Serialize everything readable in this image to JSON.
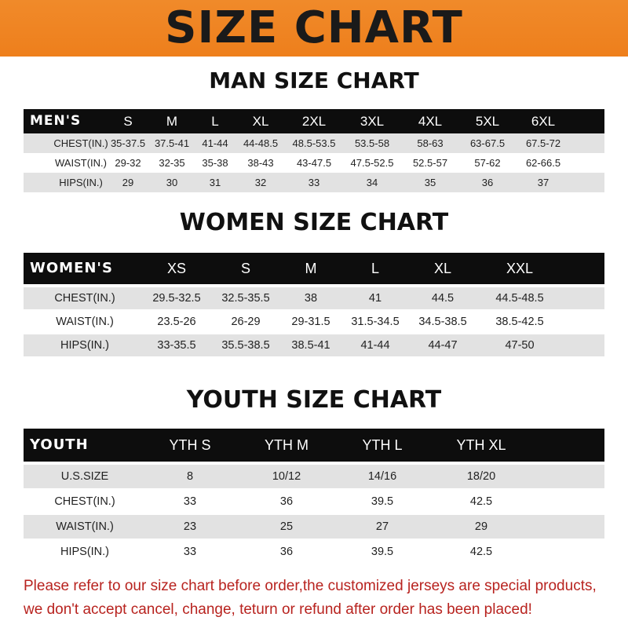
{
  "banner": {
    "title": "SIZE CHART",
    "color": "#ef851f"
  },
  "men": {
    "title": "MAN SIZE CHART",
    "header": [
      "MEN'S",
      "S",
      "M",
      "L",
      "XL",
      "2XL",
      "3XL",
      "4XL",
      "5XL",
      "6XL"
    ],
    "rows": [
      [
        "CHEST(IN.)",
        "35-37.5",
        "37.5-41",
        "41-44",
        "44-48.5",
        "48.5-53.5",
        "53.5-58",
        "58-63",
        "63-67.5",
        "67.5-72"
      ],
      [
        "WAIST(IN.)",
        "29-32",
        "32-35",
        "35-38",
        "38-43",
        "43-47.5",
        "47.5-52.5",
        "52.5-57",
        "57-62",
        "62-66.5"
      ],
      [
        "HIPS(IN.)",
        "29",
        "30",
        "31",
        "32",
        "33",
        "34",
        "35",
        "36",
        "37"
      ]
    ]
  },
  "women": {
    "title": "WOMEN SIZE CHART",
    "header": [
      "WOMEN'S",
      "XS",
      "S",
      "M",
      "L",
      "XL",
      "XXL"
    ],
    "rows": [
      [
        "CHEST(IN.)",
        "29.5-32.5",
        "32.5-35.5",
        "38",
        "41",
        "44.5",
        "44.5-48.5"
      ],
      [
        "WAIST(IN.)",
        "23.5-26",
        "26-29",
        "29-31.5",
        "31.5-34.5",
        "34.5-38.5",
        "38.5-42.5"
      ],
      [
        "HIPS(IN.)",
        "33-35.5",
        "35.5-38.5",
        "38.5-41",
        "41-44",
        "44-47",
        "47-50"
      ]
    ]
  },
  "youth": {
    "title": "YOUTH SIZE CHART",
    "header": [
      "YOUTH",
      "YTH S",
      "YTH M",
      "YTH L",
      "YTH XL"
    ],
    "rows": [
      [
        "U.S.SIZE",
        "8",
        "10/12",
        "14/16",
        "18/20"
      ],
      [
        "CHEST(IN.)",
        "33",
        "36",
        "39.5",
        "42.5"
      ],
      [
        "WAIST(IN.)",
        "23",
        "25",
        "27",
        "29"
      ],
      [
        "HIPS(IN.)",
        "33",
        "36",
        "39.5",
        "42.5"
      ]
    ]
  },
  "notice": {
    "line1": "Please refer to our size chart before order,the customized jerseys are special products,",
    "line2": "we don't accept cancel, change, teturn or refund after order has been placed!",
    "color": "#b8231f"
  }
}
